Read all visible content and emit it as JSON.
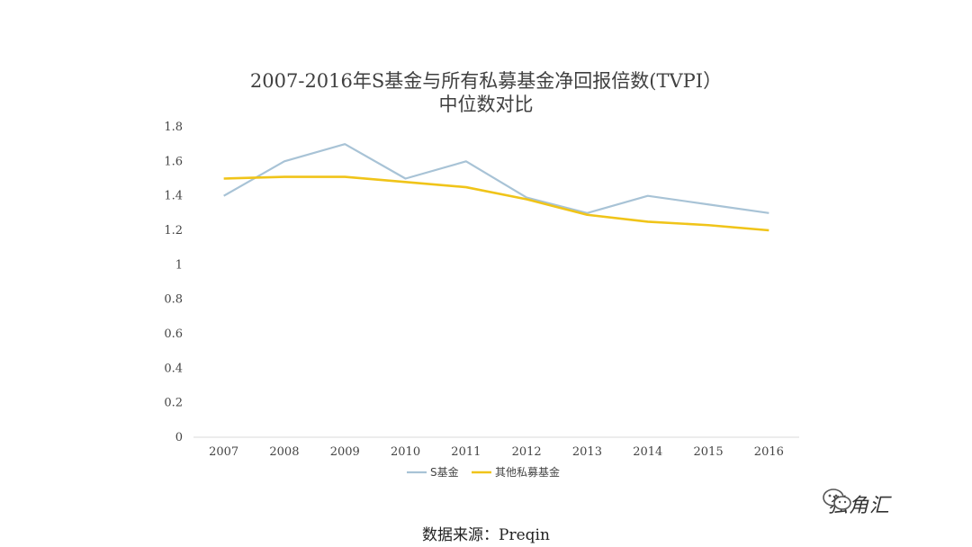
{
  "chart_data": {
    "type": "line",
    "title": "2007-2016年S基金与所有私募基金净回报倍数(TVPI）",
    "subtitle": "中位数对比",
    "categories": [
      "2007",
      "2008",
      "2009",
      "2010",
      "2011",
      "2012",
      "2013",
      "2014",
      "2015",
      "2016"
    ],
    "series": [
      {
        "name": "S基金",
        "color": "#a8c3d6",
        "values": [
          1.4,
          1.6,
          1.7,
          1.5,
          1.6,
          1.39,
          1.3,
          1.4,
          1.35,
          1.3
        ]
      },
      {
        "name": "其他私募基金",
        "color": "#f0c419",
        "values": [
          1.5,
          1.51,
          1.51,
          1.48,
          1.45,
          1.38,
          1.29,
          1.25,
          1.23,
          1.2
        ]
      }
    ],
    "yticks": [
      "0",
      "0.2",
      "0.4",
      "0.6",
      "0.8",
      "1",
      "1.2",
      "1.4",
      "1.6",
      "1.8"
    ],
    "ylim": [
      0,
      1.8
    ],
    "legend_position": "bottom",
    "grid": false
  },
  "source": "数据来源：Preqin",
  "watermark": "独角汇"
}
